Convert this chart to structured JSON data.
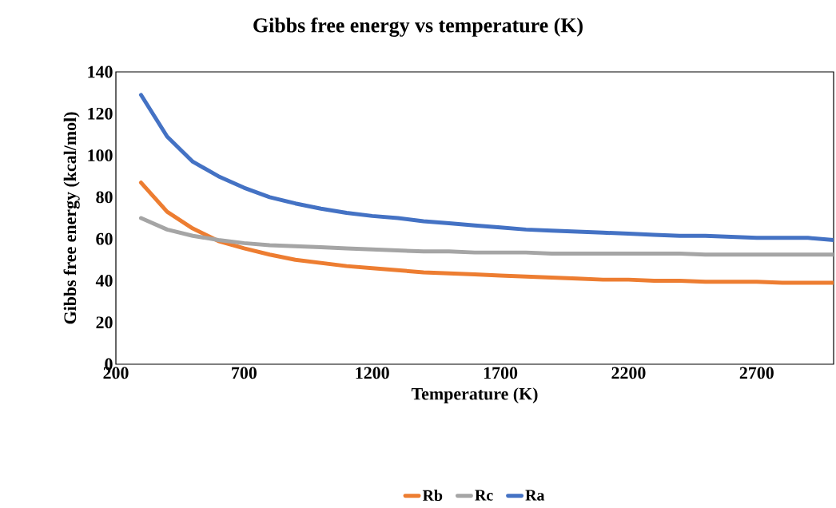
{
  "chart_data": {
    "type": "line",
    "title": "Gibbs free energy vs temperature (K)",
    "xlabel": "Temperature (K)",
    "ylabel": "Gibbs free energy (kcal/mol)",
    "x": [
      298,
      400,
      500,
      600,
      700,
      800,
      900,
      1000,
      1100,
      1200,
      1300,
      1400,
      1500,
      1600,
      1700,
      1800,
      1900,
      2000,
      2100,
      2200,
      2300,
      2400,
      2500,
      2600,
      2700,
      2800,
      2900,
      3000
    ],
    "series": [
      {
        "name": "Rb",
        "color": "#ed7d31",
        "values": [
          87,
          73,
          65,
          59,
          55.5,
          52.5,
          50,
          48.5,
          47,
          46,
          45,
          44,
          43.5,
          43,
          42.5,
          42,
          41.5,
          41,
          40.5,
          40.5,
          40,
          40,
          39.5,
          39.5,
          39.5,
          39,
          39,
          39
        ]
      },
      {
        "name": "Rc",
        "color": "#a5a5a5",
        "values": [
          70,
          64.5,
          61.5,
          59.5,
          58,
          57,
          56.5,
          56,
          55.5,
          55,
          54.5,
          54,
          54,
          53.5,
          53.5,
          53.5,
          53,
          53,
          53,
          53,
          53,
          53,
          52.5,
          52.5,
          52.5,
          52.5,
          52.5,
          52.5
        ]
      },
      {
        "name": "Ra",
        "color": "#4472c4",
        "values": [
          129,
          109,
          97,
          90,
          84.5,
          80,
          77,
          74.5,
          72.5,
          71,
          70,
          68.5,
          67.5,
          66.5,
          65.5,
          64.5,
          64,
          63.5,
          63,
          62.5,
          62,
          61.5,
          61.5,
          61,
          60.5,
          60.5,
          60.5,
          59.5
        ]
      }
    ],
    "xlim": [
      200,
      3000
    ],
    "ylim": [
      0,
      140
    ],
    "xticks": [
      200,
      700,
      1200,
      1700,
      2200,
      2700
    ],
    "yticks": [
      0,
      20,
      40,
      60,
      80,
      100,
      120,
      140
    ],
    "legend": "bottom",
    "grid": false,
    "marker": "none",
    "line_style": "solid"
  }
}
